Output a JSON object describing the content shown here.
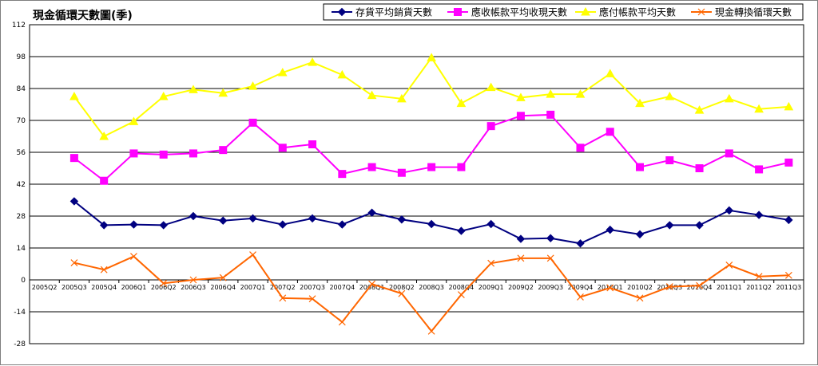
{
  "chart_data": {
    "type": "line",
    "title": "現金循環天數圖(季)",
    "xlabel": "",
    "ylabel": "",
    "ylim": [
      -28,
      112
    ],
    "yticks": [
      -28,
      -14,
      0,
      14,
      28,
      42,
      56,
      70,
      84,
      98,
      112
    ],
    "grid": true,
    "legend": "top-right",
    "categories": [
      "2005Q2",
      "2005Q3",
      "2005Q4",
      "2006Q1",
      "2006Q2",
      "2006Q3",
      "2006Q4",
      "2007Q1",
      "2007Q2",
      "2007Q3",
      "2007Q4",
      "2008Q1",
      "2008Q2",
      "2008Q3",
      "2008Q4",
      "2009Q1",
      "2009Q2",
      "2009Q3",
      "2009Q4",
      "2010Q1",
      "2010Q2",
      "2010Q3",
      "2010Q4",
      "2011Q1",
      "2011Q2",
      "2011Q3"
    ],
    "series": [
      {
        "name": "存貨平均銷貨天數",
        "color": "#000080",
        "marker": "diamond",
        "values": [
          null,
          34.5,
          24,
          24.3,
          24,
          28,
          26,
          27,
          24.3,
          27,
          24.3,
          29.5,
          26.5,
          24.5,
          21.5,
          24.5,
          18,
          18.3,
          16,
          22,
          20,
          24,
          24,
          30.5,
          28.5,
          26.3
        ]
      },
      {
        "name": "應收帳款平均收現天數",
        "color": "#ff00ff",
        "marker": "square",
        "values": [
          null,
          53.5,
          43.5,
          55.5,
          55,
          55.5,
          57,
          69,
          58,
          59.5,
          46.5,
          49.5,
          47,
          49.5,
          49.5,
          67.5,
          72,
          72.5,
          58,
          65,
          49.5,
          52.5,
          49,
          55.5,
          48.5,
          51.5
        ]
      },
      {
        "name": "應付帳款平均天數",
        "color": "#ffff00",
        "marker": "triangle",
        "values": [
          null,
          80.5,
          63,
          69.5,
          80.5,
          83.5,
          82,
          85,
          91,
          95.5,
          90,
          81,
          79.5,
          97.5,
          77.5,
          84.5,
          80,
          81.5,
          81.5,
          90.5,
          77.5,
          80.5,
          74.5,
          79.5,
          75,
          76
        ]
      },
      {
        "name": "現金轉換循環天數",
        "color": "#ff6600",
        "marker": "x",
        "values": [
          null,
          7.5,
          4.5,
          10.3,
          -1.5,
          0,
          1,
          11,
          -8,
          -8.3,
          -18.5,
          -1.8,
          -6,
          -22.5,
          -6.5,
          7.3,
          9.5,
          9.5,
          -7.5,
          -3.5,
          -8,
          -3,
          -2.5,
          6.5,
          1.5,
          2
        ]
      }
    ]
  }
}
